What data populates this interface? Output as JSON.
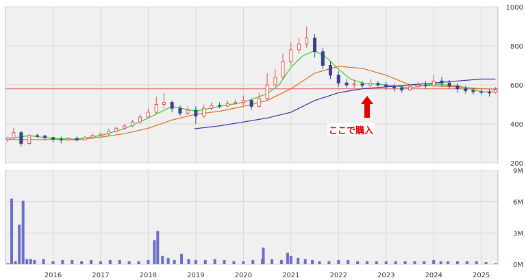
{
  "colors": {
    "up": "#e05050",
    "down": "#3a3f8f",
    "ma_short": "#33cc33",
    "ma_mid": "#e06a1a",
    "ma_long": "#3a2aa0",
    "hline": "#e05050",
    "volume": "#6a6ec8",
    "grid": "#d8d8d8",
    "panel_bg": "#f0f0f0",
    "annotation": "#e00000"
  },
  "annotation": {
    "text": "ここで購入",
    "arrow": "up-arrow-icon",
    "date": 2022.6
  },
  "chart_data": [
    {
      "type": "candlestick",
      "title": "",
      "xlabel": "",
      "ylabel": "",
      "xlim": [
        2015.0,
        2025.35
      ],
      "ylim": [
        200,
        1000
      ],
      "y_ticks": [
        200,
        400,
        600,
        800,
        1000
      ],
      "x_ticks": [
        "2016",
        "2017",
        "2018",
        "2019",
        "2020",
        "2021",
        "2022",
        "2023",
        "2024",
        "2025"
      ],
      "grid": true,
      "reference_line": 580,
      "candles": [
        [
          2015.05,
          320,
          328,
          305,
          335
        ],
        [
          2015.17,
          328,
          355,
          320,
          380
        ],
        [
          2015.33,
          355,
          300,
          285,
          365
        ],
        [
          2015.5,
          300,
          340,
          292,
          348
        ],
        [
          2015.67,
          340,
          338,
          330,
          350
        ],
        [
          2015.83,
          338,
          330,
          315,
          345
        ],
        [
          2016.0,
          330,
          322,
          305,
          335
        ],
        [
          2016.17,
          322,
          318,
          300,
          335
        ],
        [
          2016.33,
          318,
          325,
          312,
          332
        ],
        [
          2016.5,
          325,
          318,
          310,
          335
        ],
        [
          2016.67,
          318,
          330,
          315,
          340
        ],
        [
          2016.83,
          330,
          342,
          325,
          350
        ],
        [
          2017.0,
          342,
          348,
          330,
          355
        ],
        [
          2017.17,
          348,
          362,
          340,
          375
        ],
        [
          2017.33,
          362,
          378,
          355,
          385
        ],
        [
          2017.5,
          378,
          390,
          370,
          400
        ],
        [
          2017.67,
          390,
          410,
          385,
          420
        ],
        [
          2017.83,
          410,
          435,
          400,
          450
        ],
        [
          2018.0,
          435,
          460,
          430,
          480
        ],
        [
          2018.17,
          460,
          500,
          450,
          540
        ],
        [
          2018.33,
          500,
          510,
          480,
          560
        ],
        [
          2018.5,
          510,
          480,
          460,
          520
        ],
        [
          2018.67,
          480,
          455,
          440,
          495
        ],
        [
          2018.83,
          455,
          470,
          445,
          490
        ],
        [
          2019.0,
          470,
          440,
          400,
          490
        ],
        [
          2019.17,
          440,
          480,
          430,
          500
        ],
        [
          2019.33,
          480,
          495,
          470,
          510
        ],
        [
          2019.5,
          495,
          492,
          480,
          510
        ],
        [
          2019.67,
          492,
          505,
          485,
          520
        ],
        [
          2019.83,
          505,
          510,
          498,
          525
        ],
        [
          2020.0,
          510,
          520,
          495,
          545
        ],
        [
          2020.17,
          520,
          490,
          470,
          530
        ],
        [
          2020.33,
          490,
          530,
          485,
          560
        ],
        [
          2020.5,
          530,
          600,
          520,
          660
        ],
        [
          2020.67,
          600,
          640,
          590,
          680
        ],
        [
          2020.83,
          640,
          720,
          630,
          760
        ],
        [
          2021.0,
          720,
          780,
          700,
          820
        ],
        [
          2021.17,
          780,
          810,
          760,
          840
        ],
        [
          2021.33,
          810,
          840,
          790,
          900
        ],
        [
          2021.5,
          840,
          770,
          740,
          860
        ],
        [
          2021.67,
          770,
          700,
          680,
          790
        ],
        [
          2021.83,
          700,
          650,
          630,
          720
        ],
        [
          2022.0,
          650,
          610,
          590,
          670
        ],
        [
          2022.17,
          610,
          600,
          585,
          630
        ],
        [
          2022.33,
          600,
          605,
          585,
          625
        ],
        [
          2022.5,
          605,
          598,
          585,
          620
        ],
        [
          2022.67,
          598,
          608,
          590,
          630
        ],
        [
          2022.83,
          608,
          600,
          590,
          620
        ],
        [
          2023.0,
          600,
          590,
          575,
          615
        ],
        [
          2023.17,
          590,
          585,
          565,
          605
        ],
        [
          2023.33,
          585,
          575,
          560,
          600
        ],
        [
          2023.5,
          575,
          590,
          570,
          605
        ],
        [
          2023.67,
          590,
          600,
          585,
          615
        ],
        [
          2023.83,
          600,
          595,
          580,
          620
        ],
        [
          2024.0,
          595,
          620,
          590,
          650
        ],
        [
          2024.17,
          620,
          610,
          590,
          640
        ],
        [
          2024.33,
          610,
          595,
          580,
          625
        ],
        [
          2024.5,
          595,
          580,
          560,
          610
        ],
        [
          2024.67,
          580,
          570,
          555,
          595
        ],
        [
          2024.83,
          570,
          565,
          550,
          585
        ],
        [
          2025.0,
          565,
          562,
          548,
          580
        ],
        [
          2025.17,
          562,
          560,
          540,
          578
        ],
        [
          2025.3,
          560,
          575,
          555,
          588
        ]
      ],
      "series": [
        {
          "key": "ma_short",
          "x": [
            2015.05,
            2015.5,
            2016.0,
            2016.5,
            2017.0,
            2017.5,
            2018.0,
            2018.5,
            2019.0,
            2019.5,
            2020.0,
            2020.5,
            2020.75,
            2021.0,
            2021.25,
            2021.5,
            2021.75,
            2022.0,
            2022.25,
            2022.5,
            2023.0,
            2023.5,
            2024.0,
            2024.5,
            2025.0,
            2025.3
          ],
          "y": [
            325,
            340,
            325,
            322,
            340,
            375,
            430,
            490,
            465,
            490,
            510,
            555,
            600,
            690,
            750,
            775,
            740,
            680,
            630,
            610,
            600,
            585,
            605,
            595,
            565,
            565
          ]
        },
        {
          "key": "ma_mid",
          "x": [
            2015.05,
            2016.0,
            2016.5,
            2017.0,
            2017.5,
            2018.0,
            2018.5,
            2019.0,
            2019.5,
            2020.0,
            2020.5,
            2021.0,
            2021.5,
            2022.0,
            2022.5,
            2023.0,
            2023.5,
            2024.0,
            2024.5,
            2025.0,
            2025.3
          ],
          "y": [
            320,
            320,
            318,
            332,
            350,
            378,
            420,
            450,
            465,
            490,
            520,
            580,
            660,
            695,
            685,
            650,
            600,
            595,
            590,
            580,
            578
          ]
        },
        {
          "key": "ma_long",
          "x": [
            2018.97,
            2019.5,
            2020.0,
            2020.5,
            2021.0,
            2021.5,
            2022.0,
            2022.5,
            2023.0,
            2023.5,
            2024.0,
            2024.5,
            2025.0,
            2025.3
          ],
          "y": [
            375,
            390,
            410,
            430,
            460,
            520,
            560,
            580,
            590,
            600,
            610,
            620,
            630,
            630
          ]
        }
      ]
    },
    {
      "type": "bar",
      "title": "",
      "xlabel": "",
      "ylabel": "",
      "xlim": [
        2015.0,
        2025.35
      ],
      "ylim": [
        0,
        9
      ],
      "y_ticks": [
        "0M",
        "3M",
        "6M",
        "9M"
      ],
      "y_tick_values": [
        0,
        3,
        6,
        9
      ],
      "x": [
        2015.05,
        2015.13,
        2015.21,
        2015.29,
        2015.37,
        2015.45,
        2015.53,
        2015.61,
        2015.8,
        2016.0,
        2016.2,
        2016.4,
        2016.6,
        2016.8,
        2017.0,
        2017.2,
        2017.4,
        2017.6,
        2017.8,
        2018.0,
        2018.13,
        2018.2,
        2018.3,
        2018.42,
        2018.55,
        2018.7,
        2018.85,
        2019.0,
        2019.2,
        2019.4,
        2019.6,
        2019.8,
        2020.0,
        2020.2,
        2020.4,
        2020.42,
        2020.6,
        2020.8,
        2020.93,
        2021.0,
        2021.15,
        2021.3,
        2021.45,
        2021.6,
        2021.8,
        2022.0,
        2022.2,
        2022.4,
        2022.6,
        2022.8,
        2023.0,
        2023.2,
        2023.4,
        2023.6,
        2023.8,
        2024.0,
        2024.15,
        2024.3,
        2024.5,
        2024.7,
        2024.9,
        2025.1,
        2025.3
      ],
      "values": [
        0.1,
        6.3,
        0.3,
        3.8,
        6.1,
        0.5,
        0.5,
        0.4,
        0.5,
        0.3,
        0.4,
        0.4,
        0.3,
        0.4,
        0.3,
        0.4,
        0.4,
        0.3,
        0.3,
        0.4,
        2.3,
        3.2,
        0.8,
        0.6,
        0.4,
        1.0,
        0.5,
        0.4,
        0.4,
        0.5,
        0.4,
        0.3,
        0.3,
        0.4,
        0.5,
        1.6,
        0.5,
        0.4,
        1.1,
        0.8,
        0.6,
        0.5,
        0.4,
        0.3,
        0.3,
        0.4,
        0.4,
        0.3,
        0.3,
        0.3,
        0.3,
        0.3,
        0.3,
        0.3,
        0.3,
        0.4,
        0.3,
        0.3,
        0.3,
        0.3,
        0.3,
        0.2,
        0.1
      ]
    }
  ]
}
